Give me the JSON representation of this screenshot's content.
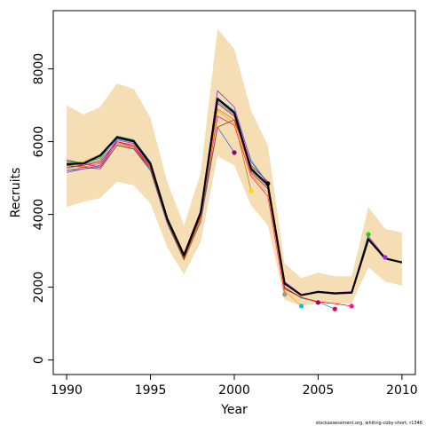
{
  "chart_data": {
    "type": "line",
    "title": "",
    "xlabel": "Year",
    "ylabel": "Recruits",
    "xlim": [
      1989.2,
      2010.8
    ],
    "ylim": [
      -400,
      9600
    ],
    "x_ticks": [
      1990,
      1995,
      2000,
      2005,
      2010
    ],
    "y_ticks": [
      0,
      2000,
      4000,
      6000,
      8000
    ],
    "footnote": "stockassessment.org, whiting-coby-short, r1346",
    "colors": {
      "band": "#f5deb3",
      "main": "#000000",
      "retro": [
        "#a020f0",
        "#00a000",
        "#ff0000",
        "#1e90ff",
        "#8b4513",
        "#ffa500",
        "#ff1493",
        "#00ced1",
        "#b8860b",
        "#4169e1",
        "#cc0000"
      ]
    },
    "confidence_band": {
      "x": [
        1990,
        1991,
        1992,
        1993,
        1994,
        1995,
        1996,
        1997,
        1998,
        1999,
        2000,
        2001,
        2002,
        2003,
        2004,
        2005,
        2006,
        2007,
        2008,
        2009,
        2010
      ],
      "lower": [
        4200,
        4350,
        4450,
        4900,
        4800,
        4300,
        3100,
        2350,
        3250,
        5600,
        5350,
        4250,
        3700,
        1650,
        1500,
        1550,
        1550,
        1550,
        2550,
        2150,
        2050
      ],
      "upper": [
        7000,
        6750,
        6950,
        7600,
        7450,
        6650,
        4900,
        3700,
        5150,
        9100,
        8550,
        6850,
        5900,
        2650,
        2250,
        2400,
        2300,
        2300,
        4200,
        3600,
        3500
      ]
    },
    "series": [
      {
        "x": [
          1990,
          1991,
          1992,
          1993,
          1994,
          1995,
          1996,
          1997,
          1998,
          1999,
          2000,
          2001,
          2002,
          2003,
          2004,
          2005,
          2006,
          2007,
          2008,
          2009,
          2010
        ],
        "values": [
          5380,
          5400,
          5620,
          6120,
          6010,
          5390,
          3880,
          2880,
          4060,
          7180,
          6800,
          5250,
          4820,
          2100,
          1780,
          1870,
          1830,
          1850,
          3320,
          2790,
          2680
        ]
      },
      {
        "x": [
          1990,
          1991,
          1992,
          1993,
          1994,
          1995,
          1996,
          1997,
          1998,
          1999,
          2000,
          2001,
          2002,
          2003,
          2004,
          2005,
          2006,
          2007,
          2008,
          2009
        ],
        "values": [
          5200,
          5250,
          5350,
          6050,
          5950,
          5350,
          3900,
          2900,
          4100,
          7400,
          6950,
          5450,
          4850,
          2150,
          1800,
          1890,
          1850,
          1880,
          3400,
          2820
        ]
      },
      {
        "x": [
          1990,
          1991,
          1992,
          1993,
          1994,
          1995,
          1996,
          1997,
          1998,
          1999,
          2000,
          2001,
          2002,
          2003,
          2004,
          2005,
          2006,
          2007,
          2008
        ],
        "values": [
          5450,
          5420,
          5550,
          6150,
          6050,
          5420,
          3860,
          2850,
          4050,
          7150,
          6780,
          5300,
          4800,
          2080,
          1790,
          1880,
          1820,
          1860,
          3450
        ]
      },
      {
        "x": [
          1990,
          1991,
          1992,
          1993,
          1994,
          1995,
          1996,
          1997,
          1998,
          1999,
          2000,
          2001,
          2002,
          2003,
          2004,
          2005,
          2006,
          2007
        ],
        "values": [
          5300,
          5350,
          5450,
          6000,
          5900,
          5300,
          3850,
          2820,
          3980,
          7050,
          6700,
          5150,
          4700,
          1980,
          1720,
          1600,
          1550,
          1480
        ]
      },
      {
        "x": [
          1990,
          1991,
          1992,
          1993,
          1994,
          1995,
          1996,
          1997,
          1998,
          1999,
          2000,
          2001,
          2002,
          2003,
          2004,
          2005,
          2006
        ],
        "values": [
          5250,
          5380,
          5500,
          6080,
          5980,
          5360,
          3870,
          2870,
          4080,
          7100,
          6750,
          5200,
          4750,
          2000,
          1700,
          1600,
          1400
        ]
      },
      {
        "x": [
          1990,
          1991,
          1992,
          1993,
          1994,
          1995,
          1996,
          1997,
          1998,
          1999,
          2000,
          2001,
          2002,
          2003,
          2004,
          2005
        ],
        "values": [
          5350,
          5300,
          5250,
          5900,
          5800,
          5250,
          3800,
          2780,
          3950,
          6400,
          6600,
          5350,
          4900,
          1950,
          1720,
          1580
        ]
      },
      {
        "x": [
          1990,
          1991,
          1992,
          1993,
          1994,
          1995,
          1996,
          1997,
          1998,
          1999,
          2000,
          2001,
          2002,
          2003,
          2004
        ],
        "values": [
          5400,
          5450,
          5650,
          6100,
          6000,
          5380,
          3820,
          2800,
          3900,
          6850,
          6500,
          5100,
          4600,
          1900,
          1480
        ]
      },
      {
        "x": [
          1990,
          1991,
          1992,
          1993,
          1994,
          1995,
          1996,
          1997,
          1998,
          1999,
          2000,
          2001,
          2002,
          2003
        ],
        "values": [
          5500,
          5400,
          5300,
          6000,
          5850,
          5300,
          3850,
          2800,
          3900,
          6700,
          6450,
          5050,
          4500,
          1800
        ]
      },
      {
        "x": [
          1990,
          1991,
          1992,
          1993,
          1994,
          1995,
          1996,
          1997,
          1998,
          1999,
          2000,
          2001,
          2002
        ],
        "values": [
          5480,
          5420,
          5600,
          6150,
          6050,
          5450,
          3900,
          2900,
          4000,
          7200,
          6850,
          5500,
          4850
        ]
      },
      {
        "x": [
          1990,
          1991,
          1992,
          1993,
          1994,
          1995,
          1996,
          1997,
          1998,
          1999,
          2000,
          2001
        ],
        "values": [
          5200,
          5300,
          5400,
          5950,
          5850,
          5250,
          3800,
          2750,
          3850,
          6900,
          6600,
          4650
        ]
      },
      {
        "x": [
          1990,
          1991,
          1992,
          1993,
          1994,
          1995,
          1996,
          1997,
          1998,
          1999,
          2000
        ],
        "values": [
          5150,
          5250,
          5300,
          5900,
          5800,
          5200,
          3750,
          2750,
          3800,
          6400,
          5700
        ]
      }
    ],
    "end_points": [
      {
        "x": 2009,
        "y": 2820,
        "color": "#a020f0"
      },
      {
        "x": 2008,
        "y": 3450,
        "color": "#22cc22"
      },
      {
        "x": 2007,
        "y": 1480,
        "color": "#ff1493"
      },
      {
        "x": 2006,
        "y": 1400,
        "color": "#dd0044"
      },
      {
        "x": 2005,
        "y": 1580,
        "color": "#a0007a"
      },
      {
        "x": 2004,
        "y": 1480,
        "color": "#00bfff"
      },
      {
        "x": 2003,
        "y": 1800,
        "color": "#999999"
      },
      {
        "x": 2002,
        "y": 4850,
        "color": "#000000"
      },
      {
        "x": 2001,
        "y": 4650,
        "color": "#ffd700"
      },
      {
        "x": 2000,
        "y": 5700,
        "color": "#8b008b"
      }
    ]
  }
}
